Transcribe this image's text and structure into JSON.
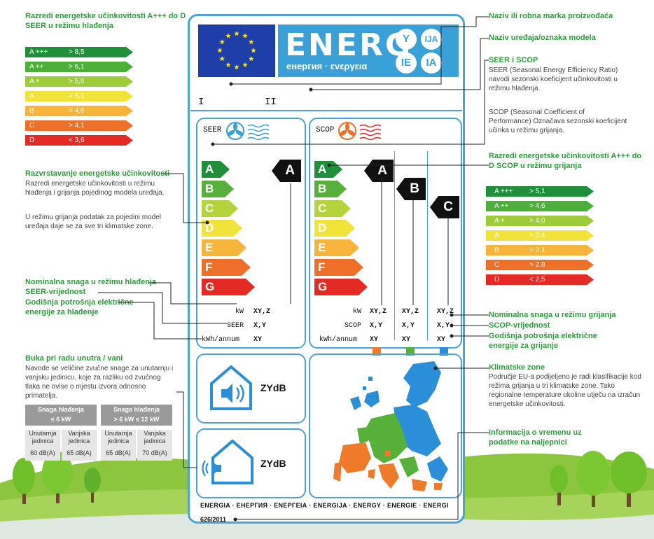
{
  "left": {
    "cooling_classes_title": "Razredi energetske učinkovitosti A+++ do D SEER u režimu hlađenja",
    "cooling_classes": [
      {
        "cls": "A +++",
        "val": "> 8,5",
        "color": "#1f8f3a"
      },
      {
        "cls": "A ++",
        "val": "> 6,1",
        "color": "#4caf3a"
      },
      {
        "cls": "A +",
        "val": "> 5,6",
        "color": "#9ccc3a"
      },
      {
        "cls": "A",
        "val": "> 5,1",
        "color": "#f2e33a"
      },
      {
        "cls": "B",
        "val": "> 4,6",
        "color": "#f6b53a"
      },
      {
        "cls": "C",
        "val": "> 4,1",
        "color": "#ee6f2a"
      },
      {
        "cls": "D",
        "val": "< 3,6",
        "color": "#e42a25"
      }
    ],
    "ranking_title": "Razvrstavanje energetske učinkovitosti",
    "ranking_text1": "Razredi energetske učinkovitosti u režimu hlađenja i grijanja pojedinog modela uređaja.",
    "ranking_text2": "U režimu grijanja podatak za pojedini model uređaja daje se za sve tri klimatske zone.",
    "nominal_cool": "Nominalna snaga u režimu hlađenja",
    "seer_value": "SEER-vrijednost",
    "annual_cool": "Godišnja potrošnja električne energije za hlađenje",
    "noise_title": "Buka pri radu unutra / vani",
    "noise_text": "Navode se veličine zvučne snage za unutarnju i vanjsku jedinicu, koje za razliku od zvučnog tlaka ne ovise o mjestu izvora odnosno primatelja.",
    "noise_table": {
      "h1": "Snaga hlađenja",
      "h1b": "≤ 6 kW",
      "h2": "Snaga hlađenja",
      "h2b": "> 6 kW ≤ 12 kW",
      "c1": "Unutarnja jedinica",
      "c2": "Vanjska jedinica",
      "c3": "Unutarnja jedinica",
      "c4": "Vanjska jedinica",
      "v1": "60 dB(A)",
      "v2": "65 dB(A)",
      "v3": "65 dB(A)",
      "v4": "70 dB(A)"
    }
  },
  "label": {
    "energ": "ENERG",
    "subtitle": "енергия · ενεργεια",
    "bubbles": [
      "Y",
      "IJA",
      "IE",
      "IA"
    ],
    "roman1": "I",
    "roman2": "II",
    "seer": "SEER",
    "scop": "SCOP",
    "scale": [
      "A",
      "B",
      "C",
      "D",
      "E",
      "F",
      "G"
    ],
    "scale_colors": [
      "#1f8f3a",
      "#56b03a",
      "#b5d33a",
      "#f2e33a",
      "#f6b53a",
      "#ee6f2a",
      "#e42a25"
    ],
    "cool_class": "A",
    "heat_classes": [
      "A",
      "B",
      "C"
    ],
    "kw": "kW",
    "seer_row": "SEER",
    "kwh": "kWh/annum",
    "xyz": "XY,Z",
    "xy": "X,Y",
    "xy2": "XY",
    "scop_row": "SCOP",
    "zone_colors": [
      "#ee7a2a",
      "#56b03a",
      "#2a8fd8"
    ],
    "zydb": "ZYdB",
    "languages": "ENERGIA · ЕНЕРГИЯ · ΕΝΕΡΓΕΙΑ · ENERGIJA · ENERGY · ENERGIE · ENERGI",
    "regulation": "626/2011"
  },
  "right": {
    "brand": "Naziv ili robna marka proizvođača",
    "model": "Naziv uređaja/oznaka modela",
    "seer_scop_title": "SEER i SCOP",
    "seer_text": "SEER (Seasonal Energy Efficiency Ratio) navodi sezonski koeficijent učinkovitosti u režimu hlađenja.",
    "scop_text": "SCOP (Seasonal Coefficient of Performance) Označava sezonski koeficijent učinka u režimu grijanja.",
    "heating_classes_title": "Razredi energetske učinkovitosti A+++ do D SCOP u režimu grijanja",
    "heating_classes": [
      {
        "cls": "A +++",
        "val": "> 5,1",
        "color": "#1f8f3a"
      },
      {
        "cls": "A ++",
        "val": "> 4,6",
        "color": "#4caf3a"
      },
      {
        "cls": "A +",
        "val": "> 4,0",
        "color": "#9ccc3a"
      },
      {
        "cls": "A",
        "val": "> 3,4",
        "color": "#f2e33a"
      },
      {
        "cls": "B",
        "val": "> 3,1",
        "color": "#f6b53a"
      },
      {
        "cls": "C",
        "val": "> 2,8",
        "color": "#ee6f2a"
      },
      {
        "cls": "D",
        "val": "< 2,5",
        "color": "#e42a25"
      }
    ],
    "nominal_heat": "Nominalna snaga u režimu grijanja",
    "scop_value": "SCOP-vrijednost",
    "annual_heat": "Godišnja potrošnja električne energije za grijanje",
    "zones_title": "Klimatske zone",
    "zones_text": "Područje EU-a podijeljeno je radi klasifikacije kod režima grijanja u tri klimatske zone. Tako regionalne temperature okoline utječu na izračun energetske učinkovitosti.",
    "info_title": "Informacija o vremenu uz podatke na naljepnici"
  }
}
